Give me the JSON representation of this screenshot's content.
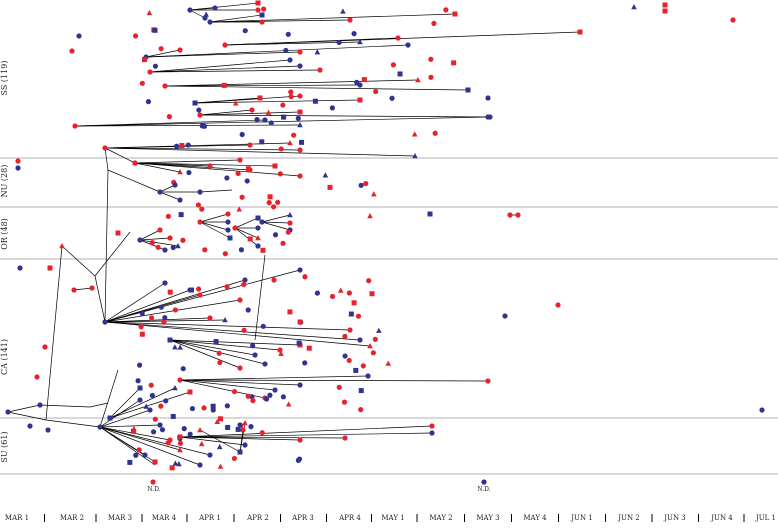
{
  "figure": {
    "colors": {
      "red": "#e8212b",
      "blue": "#2f3490",
      "line": "#000000",
      "separator": "#9a9a9a"
    },
    "marker_kinds": [
      "circle",
      "square",
      "triangle"
    ]
  },
  "regions": [
    {
      "id": "ss",
      "label": "SS (119)"
    },
    {
      "id": "nu",
      "label": "NU (28)"
    },
    {
      "id": "or",
      "label": "OR (48)"
    },
    {
      "id": "ca",
      "label": "CA (141)"
    },
    {
      "id": "su",
      "label": "SU (61)"
    }
  ],
  "time_axis": {
    "ticks": [
      "MAR 1",
      "MAR 2",
      "MAR 3",
      "MAR 4",
      "APR 1",
      "APR 2",
      "APR 3",
      "APR 4",
      "MAY 1",
      "MAY 2",
      "MAY 3",
      "MAY 4",
      "JUN 1",
      "JUN 2",
      "JUN 3",
      "JUN 4",
      "JUL 1"
    ]
  },
  "not_dated_labels": [
    "N.D.",
    "N.D."
  ]
}
